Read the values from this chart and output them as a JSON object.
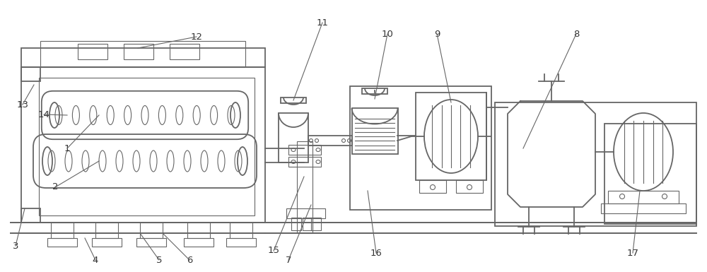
{
  "bg_color": "#ffffff",
  "line_color": "#666666",
  "line_width": 1.3,
  "thin_lw": 0.8,
  "label_color": "#333333",
  "label_fontsize": 9.5,
  "fig_width": 10.0,
  "fig_height": 3.85
}
